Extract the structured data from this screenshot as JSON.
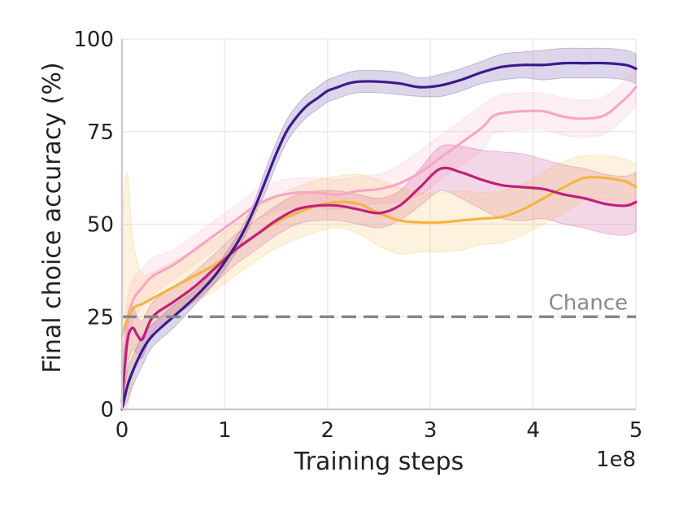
{
  "chart_data": {
    "type": "line",
    "title": "",
    "xlabel": "Training steps",
    "ylabel": "Final choice accuracy (%)",
    "x_offset_text": "1e8",
    "xlim": [
      0,
      5
    ],
    "ylim": [
      0,
      100
    ],
    "x_ticks": [
      0,
      1,
      2,
      3,
      4,
      5
    ],
    "x_tick_labels": [
      "0",
      "1",
      "2",
      "3",
      "4",
      "5"
    ],
    "y_ticks": [
      0,
      25,
      50,
      75,
      100
    ],
    "y_tick_labels": [
      "0",
      "25",
      "50",
      "75",
      "100"
    ],
    "grid": true,
    "reference_line": {
      "value": 25,
      "label": "Chance",
      "color": "#888888",
      "style": "dashed"
    },
    "series": [
      {
        "name": "series-purple",
        "color": "#3c1a8c",
        "x": [
          0,
          0.05,
          0.1,
          0.2,
          0.3,
          0.5,
          0.7,
          0.9,
          1.1,
          1.2,
          1.3,
          1.4,
          1.5,
          1.6,
          1.7,
          1.8,
          1.9,
          2.0,
          2.1,
          2.2,
          2.3,
          2.5,
          2.7,
          2.9,
          3.1,
          3.3,
          3.5,
          3.7,
          3.9,
          4.1,
          4.3,
          4.5,
          4.7,
          4.9,
          5.0
        ],
        "y": [
          0,
          6,
          10,
          16,
          20,
          25,
          30,
          36,
          44,
          49,
          55,
          62,
          69,
          75,
          79,
          82,
          84,
          86,
          87,
          88,
          88.5,
          88.5,
          88,
          87,
          87.5,
          89,
          91,
          92.5,
          93,
          93,
          93.5,
          93.5,
          93.5,
          93,
          92
        ],
        "band_halfwidth": [
          0,
          4,
          4,
          4,
          3,
          3,
          2,
          2,
          2,
          2,
          2,
          3,
          3,
          3,
          3,
          3,
          3,
          3,
          3,
          3,
          3,
          3,
          3,
          2.5,
          3,
          3,
          3,
          3.5,
          3.5,
          4,
          4,
          4,
          4,
          4,
          4
        ]
      },
      {
        "name": "series-pink",
        "color": "#f7a6c6",
        "x": [
          0,
          0.05,
          0.1,
          0.2,
          0.3,
          0.5,
          0.7,
          0.9,
          1.1,
          1.3,
          1.5,
          1.7,
          1.9,
          2.1,
          2.3,
          2.5,
          2.7,
          2.9,
          3.1,
          3.3,
          3.5,
          3.6,
          3.7,
          3.9,
          4.1,
          4.3,
          4.5,
          4.7,
          4.9,
          5.0
        ],
        "y": [
          10,
          22,
          29,
          33,
          36,
          39,
          43,
          47,
          51,
          55,
          57.5,
          58.5,
          58.5,
          58,
          59,
          59.5,
          61,
          64,
          68,
          72,
          76,
          79,
          80,
          80.5,
          80.5,
          79,
          78.5,
          79.5,
          84,
          87
        ],
        "band_halfwidth": [
          8,
          7,
          6,
          5,
          5,
          4,
          4,
          4,
          4,
          4,
          4,
          4,
          4,
          4,
          4,
          4,
          5,
          6,
          6,
          6,
          6,
          5,
          5,
          5,
          5,
          5,
          5,
          5,
          5,
          5
        ]
      },
      {
        "name": "series-magenta",
        "color": "#c0207a",
        "x": [
          0,
          0.05,
          0.1,
          0.15,
          0.2,
          0.3,
          0.5,
          0.7,
          0.9,
          1.1,
          1.3,
          1.5,
          1.7,
          1.9,
          2.1,
          2.3,
          2.5,
          2.7,
          2.9,
          3.1,
          3.3,
          3.5,
          3.7,
          3.9,
          4.1,
          4.3,
          4.5,
          4.7,
          4.9,
          5.0
        ],
        "y": [
          2,
          18,
          22,
          20,
          19,
          25,
          29,
          33,
          38,
          43,
          47,
          51,
          54,
          55,
          55,
          54,
          53,
          55,
          60,
          65,
          64,
          62,
          60.5,
          60,
          59.5,
          58,
          57,
          55.5,
          55,
          56
        ],
        "band_halfwidth": [
          8,
          7,
          6,
          5,
          5,
          4,
          4,
          4,
          4,
          4,
          4,
          4,
          4,
          4,
          4,
          4,
          4,
          4,
          5,
          6,
          7,
          8,
          9,
          9,
          8,
          8,
          8,
          8,
          8,
          8
        ]
      },
      {
        "name": "series-yellow",
        "color": "#f2b640",
        "x": [
          0,
          0.05,
          0.1,
          0.15,
          0.2,
          0.3,
          0.5,
          0.7,
          0.9,
          1.1,
          1.3,
          1.5,
          1.7,
          1.9,
          2.1,
          2.3,
          2.5,
          2.7,
          2.9,
          3.1,
          3.3,
          3.5,
          3.7,
          3.9,
          4.1,
          4.3,
          4.5,
          4.7,
          4.9,
          5.0
        ],
        "y": [
          20,
          24,
          27,
          28,
          28.5,
          30,
          33,
          36,
          39,
          43,
          47,
          50.5,
          53,
          55,
          56,
          55.5,
          53,
          51,
          50.5,
          50.5,
          51,
          51.5,
          52,
          54,
          57,
          60,
          62.5,
          62.5,
          61.5,
          60
        ],
        "band_halfwidth": [
          30,
          40,
          20,
          12,
          8,
          7,
          7,
          7,
          7,
          7,
          7,
          7,
          7,
          7,
          7,
          8,
          9,
          9,
          8,
          8,
          8,
          7,
          7,
          7,
          7,
          7,
          6,
          6,
          6,
          6
        ]
      }
    ]
  }
}
